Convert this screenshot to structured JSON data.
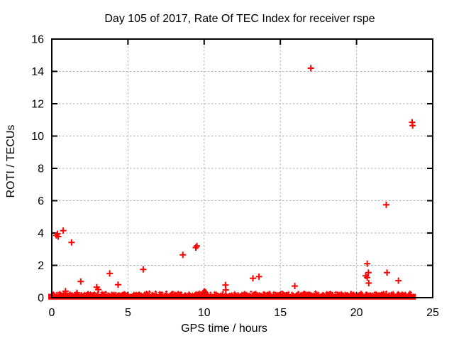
{
  "chart_data": {
    "type": "scatter",
    "title": "Day 105 of 2017, Rate Of TEC Index for receiver rspe",
    "xlabel": "GPS time / hours",
    "ylabel": "ROTI / TECUs",
    "xlim": [
      0,
      25
    ],
    "ylim": [
      0,
      16
    ],
    "xticks": [
      0,
      5,
      10,
      15,
      20,
      25
    ],
    "yticks": [
      0,
      2,
      4,
      6,
      8,
      10,
      12,
      14,
      16
    ],
    "grid": true,
    "legend_position": "none",
    "marker": "plus",
    "colors": {
      "marker": "#ff0000",
      "grid": "#b0b0b0",
      "frame": "#000000",
      "background": "#ffffff",
      "text": "#000000"
    },
    "series": [
      {
        "name": "ROTI",
        "points": [
          [
            0.3,
            3.85
          ],
          [
            0.38,
            3.95
          ],
          [
            0.42,
            3.78
          ],
          [
            0.75,
            4.15
          ],
          [
            0.9,
            0.4
          ],
          [
            1.3,
            3.42
          ],
          [
            1.65,
            0.3
          ],
          [
            1.9,
            1.0
          ],
          [
            2.95,
            0.65
          ],
          [
            3.05,
            0.5
          ],
          [
            3.8,
            1.5
          ],
          [
            4.35,
            0.8
          ],
          [
            6.0,
            1.75
          ],
          [
            8.6,
            2.65
          ],
          [
            9.45,
            3.1
          ],
          [
            9.52,
            3.2
          ],
          [
            11.4,
            0.78
          ],
          [
            11.42,
            0.48
          ],
          [
            13.2,
            1.2
          ],
          [
            13.6,
            1.3
          ],
          [
            15.95,
            0.72
          ],
          [
            17.0,
            14.2
          ],
          [
            20.6,
            1.35
          ],
          [
            20.7,
            2.1
          ],
          [
            20.7,
            1.25
          ],
          [
            20.78,
            1.55
          ],
          [
            20.8,
            0.9
          ],
          [
            21.95,
            5.75
          ],
          [
            22.0,
            1.55
          ],
          [
            22.75,
            1.05
          ],
          [
            23.65,
            10.85
          ],
          [
            23.68,
            10.65
          ]
        ]
      }
    ],
    "baseline_band": {
      "description": "dense near-zero ROTI measurements forming a solid red band",
      "x_start": 0.0,
      "x_end": 23.85,
      "y_min": -0.12,
      "y_max": 0.24,
      "jitter_spikes": [
        [
          0.55,
          0.3
        ],
        [
          1.2,
          0.28
        ],
        [
          2.4,
          0.3
        ],
        [
          3.3,
          0.32
        ],
        [
          4.8,
          0.28
        ],
        [
          5.4,
          0.26
        ],
        [
          6.4,
          0.35
        ],
        [
          7.5,
          0.27
        ],
        [
          8.3,
          0.3
        ],
        [
          9.0,
          0.28
        ],
        [
          9.85,
          0.3
        ],
        [
          9.92,
          0.36
        ],
        [
          9.98,
          0.44
        ],
        [
          10.03,
          0.48
        ],
        [
          10.08,
          0.42
        ],
        [
          10.13,
          0.35
        ],
        [
          10.18,
          0.3
        ],
        [
          10.8,
          0.28
        ],
        [
          12.0,
          0.3
        ],
        [
          12.8,
          0.26
        ],
        [
          13.4,
          0.32
        ],
        [
          14.3,
          0.28
        ],
        [
          15.2,
          0.26
        ],
        [
          16.5,
          0.3
        ],
        [
          17.4,
          0.26
        ],
        [
          18.2,
          0.28
        ],
        [
          19.0,
          0.3
        ],
        [
          19.8,
          0.26
        ],
        [
          20.3,
          0.33
        ],
        [
          21.3,
          0.28
        ],
        [
          22.4,
          0.3
        ],
        [
          23.0,
          0.28
        ],
        [
          23.5,
          0.33
        ]
      ]
    }
  }
}
